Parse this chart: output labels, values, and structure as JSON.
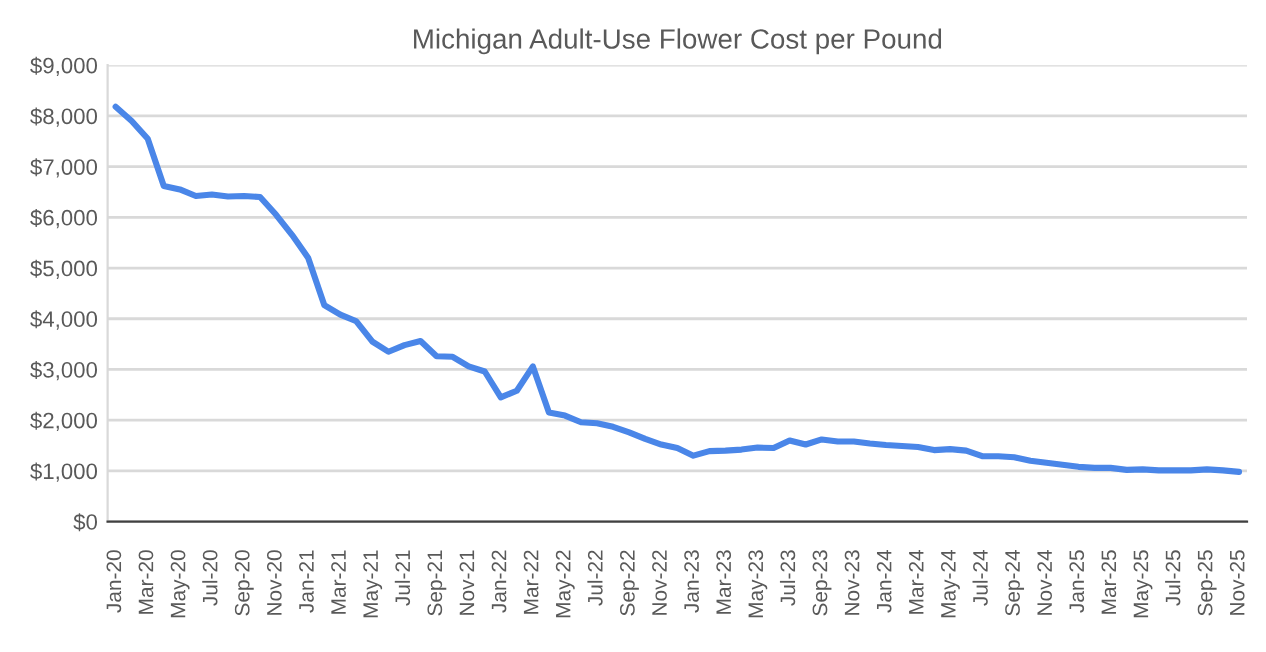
{
  "chart_data": {
    "type": "line",
    "title": "Michigan Adult-Use Flower Cost per Pound",
    "categories": [
      "Jan-20",
      null,
      "Mar-20",
      null,
      "May-20",
      null,
      "Jul-20",
      null,
      "Sep-20",
      null,
      "Nov-20",
      null,
      "Jan-21",
      null,
      "Mar-21",
      null,
      "May-21",
      null,
      "Jul-21",
      null,
      "Sep-21",
      null,
      "Nov-21",
      null,
      "Jan-22",
      null,
      "Mar-22",
      null,
      "May-22",
      null,
      "Jul-22",
      null,
      "Sep-22",
      null,
      "Nov-22",
      null,
      "Jan-23",
      null,
      "Mar-23",
      null,
      "May-23",
      null,
      "Jul-23",
      null,
      "Sep-23",
      null,
      "Nov-23",
      null,
      "Jan-24",
      null,
      "Mar-24",
      null,
      "May-24",
      null,
      "Jul-24",
      null,
      "Sep-24",
      null,
      "Nov-24",
      null,
      "Jan-25",
      null,
      "Mar-25",
      null,
      "May-25",
      null,
      "Jul-25",
      null,
      "Sep-25",
      null,
      "Nov-25"
    ],
    "series": [
      {
        "color": "#4a86e8",
        "values": [
          8180,
          7900,
          7550,
          6620,
          6550,
          6420,
          6450,
          6410,
          6420,
          6400,
          6050,
          5650,
          5200,
          4270,
          4080,
          3950,
          3550,
          3350,
          3480,
          3560,
          3260,
          3250,
          3060,
          2960,
          2450,
          2580,
          3060,
          2150,
          2090,
          1960,
          1940,
          1870,
          1760,
          1630,
          1520,
          1450,
          1300,
          1390,
          1400,
          1420,
          1460,
          1450,
          1600,
          1520,
          1620,
          1580,
          1580,
          1540,
          1510,
          1490,
          1470,
          1410,
          1430,
          1400,
          1290,
          1290,
          1270,
          1200,
          1160,
          1120,
          1080,
          1060,
          1060,
          1020,
          1030,
          1010,
          1010,
          1010,
          1030,
          1010,
          980
        ]
      }
    ],
    "ylim": [
      0,
      9000
    ],
    "yticks": [
      {
        "value": 0,
        "label": "$0"
      },
      {
        "value": 1000,
        "label": "$1,000"
      },
      {
        "value": 2000,
        "label": "$2,000"
      },
      {
        "value": 3000,
        "label": "$3,000"
      },
      {
        "value": 4000,
        "label": "$4,000"
      },
      {
        "value": 5000,
        "label": "$5,000"
      },
      {
        "value": 6000,
        "label": "$6,000"
      },
      {
        "value": 7000,
        "label": "$7,000"
      },
      {
        "value": 8000,
        "label": "$8,000"
      },
      {
        "value": 9000,
        "label": "$9,000"
      }
    ],
    "grid": "y",
    "legend": false,
    "marker": "none",
    "line_style": "solid"
  }
}
